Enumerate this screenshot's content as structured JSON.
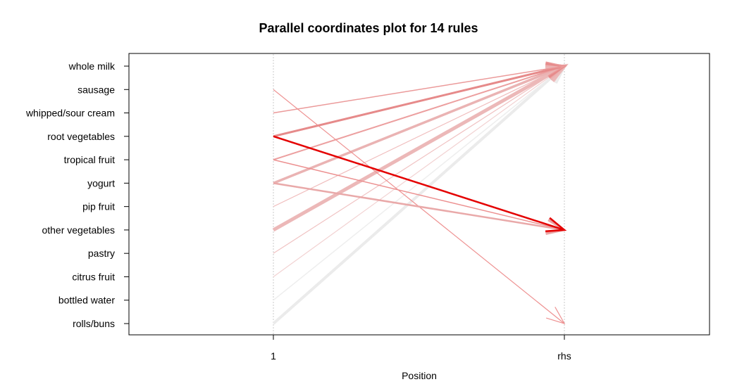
{
  "chart_data": {
    "type": "parallel-coordinates",
    "title": "Parallel coordinates plot for 14 rules",
    "xlabel": "Position",
    "x_ticks": [
      "1",
      "rhs"
    ],
    "items": [
      "whole milk",
      "sausage",
      "whipped/sour cream",
      "root vegetables",
      "tropical fruit",
      "yogurt",
      "pip fruit",
      "other vegetables",
      "pastry",
      "citrus fruit",
      "bottled water",
      "rolls/buns"
    ],
    "shading": "darker red = higher lift, thicker line = higher support",
    "grid": "vertical dotted lines at each position",
    "rules": [
      {
        "lhs": "rolls/buns",
        "rhs": "whole milk",
        "color": "#ebebeb",
        "width": 4
      },
      {
        "lhs": "bottled water",
        "rhs": "whole milk",
        "color": "#eeeeee",
        "width": 1.5
      },
      {
        "lhs": "citrus fruit",
        "rhs": "whole milk",
        "color": "#f2d2d2",
        "width": 1.2
      },
      {
        "lhs": "pastry",
        "rhs": "whole milk",
        "color": "#f0c2c2",
        "width": 1.2
      },
      {
        "lhs": "pip fruit",
        "rhs": "whole milk",
        "color": "#f0bcbc",
        "width": 1.2
      },
      {
        "lhs": "other vegetables",
        "rhs": "whole milk",
        "color": "#ecb8b8",
        "width": 5
      },
      {
        "lhs": "yogurt",
        "rhs": "whole milk",
        "color": "#eab3b3",
        "width": 3.5
      },
      {
        "lhs": "tropical fruit",
        "rhs": "whole milk",
        "color": "#ec9f9f",
        "width": 2
      },
      {
        "lhs": "root vegetables",
        "rhs": "whole milk",
        "color": "#e68a8a",
        "width": 3
      },
      {
        "lhs": "whipped/sour cream",
        "rhs": "whole milk",
        "color": "#eb9a9a",
        "width": 1.5
      },
      {
        "lhs": "sausage",
        "rhs": "rolls/buns",
        "color": "#ee9292",
        "width": 1.2
      },
      {
        "lhs": "yogurt",
        "rhs": "other vegetables",
        "color": "#e9a9a9",
        "width": 2.5
      },
      {
        "lhs": "tropical fruit",
        "rhs": "other vegetables",
        "color": "#ec9090",
        "width": 1.5
      },
      {
        "lhs": "root vegetables",
        "rhs": "other vegetables",
        "color": "#e40000",
        "width": 2.5
      }
    ]
  }
}
